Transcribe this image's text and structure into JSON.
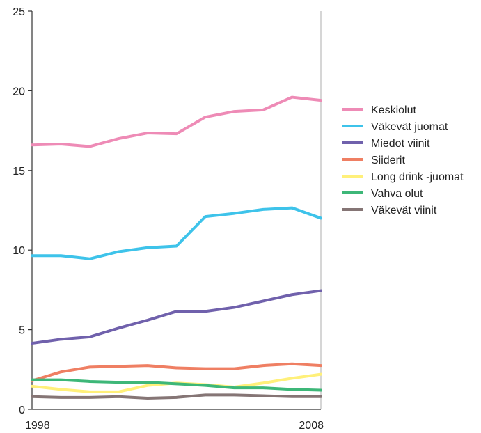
{
  "chart_data": {
    "type": "line",
    "title": "",
    "xlabel": "",
    "ylabel": "",
    "x": [
      1998,
      1999,
      2000,
      2001,
      2002,
      2003,
      2004,
      2005,
      2006,
      2007,
      2008
    ],
    "xlim": [
      1998,
      2008
    ],
    "x_tick_labels": [
      "1998",
      "2008"
    ],
    "ylim": [
      0,
      25
    ],
    "y_ticks": [
      0,
      5,
      10,
      15,
      20,
      25
    ],
    "grid": false,
    "legend_position": "right",
    "series": [
      {
        "name": "Keskiolut",
        "color": "#ee8bb6",
        "values": [
          16.6,
          16.65,
          16.5,
          17.0,
          17.35,
          17.3,
          18.35,
          18.7,
          18.8,
          19.6,
          19.4
        ]
      },
      {
        "name": "Väkevät juomat",
        "color": "#3ec3ea",
        "values": [
          9.65,
          9.65,
          9.45,
          9.9,
          10.15,
          10.25,
          12.1,
          12.3,
          12.55,
          12.65,
          12.0
        ]
      },
      {
        "name": "Miedot viinit",
        "color": "#7061ac",
        "values": [
          4.15,
          4.4,
          4.55,
          5.1,
          5.6,
          6.15,
          6.15,
          6.4,
          6.8,
          7.2,
          7.45
        ]
      },
      {
        "name": "Siiderit",
        "color": "#ef7f63",
        "values": [
          1.8,
          2.35,
          2.65,
          2.7,
          2.75,
          2.6,
          2.55,
          2.55,
          2.75,
          2.85,
          2.75
        ]
      },
      {
        "name": "Long drink -juomat",
        "color": "#fff07a",
        "values": [
          1.45,
          1.25,
          1.1,
          1.1,
          1.5,
          1.65,
          1.55,
          1.4,
          1.65,
          1.95,
          2.2
        ]
      },
      {
        "name": "Vahva olut",
        "color": "#3db778",
        "values": [
          1.85,
          1.85,
          1.75,
          1.7,
          1.7,
          1.6,
          1.5,
          1.35,
          1.35,
          1.25,
          1.2
        ]
      },
      {
        "name": "Väkevät viinit",
        "color": "#857575",
        "values": [
          0.8,
          0.75,
          0.75,
          0.8,
          0.7,
          0.75,
          0.9,
          0.9,
          0.85,
          0.8,
          0.8
        ]
      }
    ]
  }
}
